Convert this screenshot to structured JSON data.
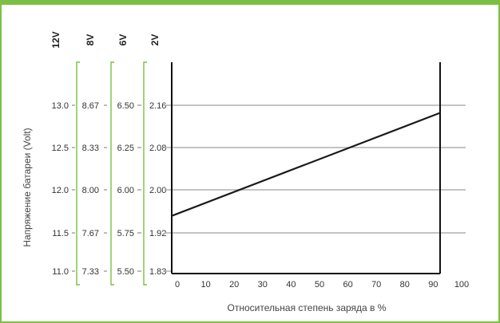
{
  "chart_data": {
    "type": "line",
    "xlabel": "Относительная степень заряда в %",
    "ylabel": "Напряжение батареи (Volt)",
    "xlim": [
      0,
      100
    ],
    "x_ticks": [
      "0",
      "10",
      "20",
      "30",
      "40",
      "50",
      "60",
      "70",
      "80",
      "90",
      "100"
    ],
    "voltage_scales": [
      {
        "header": "12V",
        "ticks": [
          "13.0",
          "12.5",
          "12.0",
          "11.5",
          "11.0"
        ]
      },
      {
        "header": "8V",
        "ticks": [
          "8.67",
          "8.33",
          "8.00",
          "7.67",
          "7.33"
        ]
      },
      {
        "header": "6V",
        "ticks": [
          "6.50",
          "6.25",
          "6.00",
          "5.75",
          "5.50"
        ]
      },
      {
        "header": "2V",
        "ticks": [
          "2.16",
          "2.08",
          "2.00",
          "1.92",
          "1.83"
        ]
      }
    ],
    "ylim": [
      1.83,
      2.16
    ],
    "series": [
      {
        "x": [
          0,
          93
        ],
        "y": [
          1.94,
          2.145
        ]
      }
    ],
    "grid": true
  },
  "colors": {
    "frame": "#7bc043",
    "bracket": "#7bc043",
    "grid": "#b0b0b0",
    "line": "#1a1a1a",
    "text": "#333333"
  }
}
